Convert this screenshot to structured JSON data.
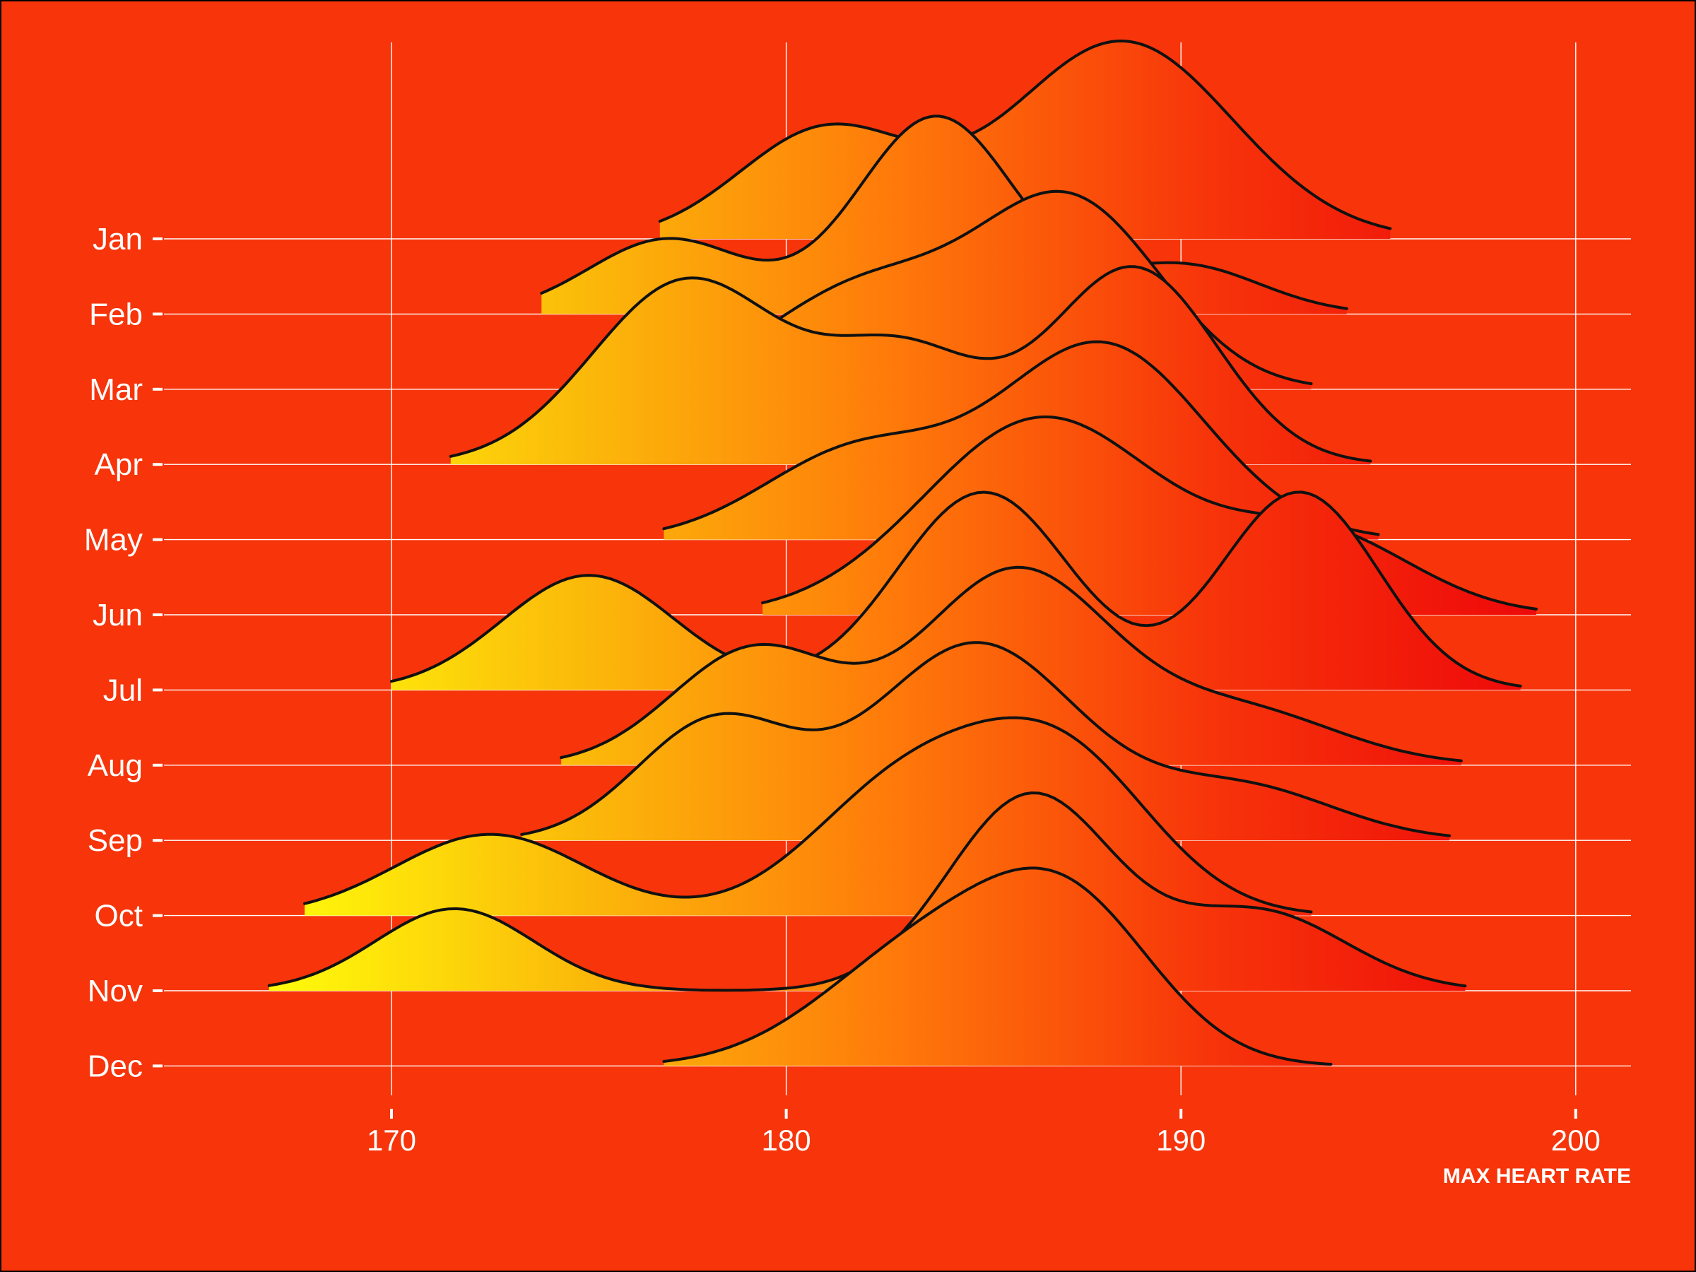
{
  "chart_data": {
    "type": "ridgeline",
    "title": "",
    "xlabel": "MAX HEART RATE",
    "ylabel": "",
    "xlim": [
      164.2,
      201.4
    ],
    "xticks": [
      170,
      180,
      190,
      200
    ],
    "categories": [
      "Jan",
      "Feb",
      "Mar",
      "Apr",
      "May",
      "Jun",
      "Jul",
      "Aug",
      "Sep",
      "Oct",
      "Nov",
      "Dec"
    ],
    "gradient_colors": [
      "#ffff0a",
      "#fbbb0a",
      "#ff7a0a",
      "#f7340a",
      "#ee0a0a"
    ],
    "series": [
      {
        "name": "Jan",
        "range": [
          176.8,
          195.3
        ],
        "components": [
          [
            181.0,
            2.2,
            0.55
          ],
          [
            188.5,
            2.8,
            1.0
          ]
        ]
      },
      {
        "name": "Feb",
        "range": [
          173.8,
          194.2
        ],
        "components": [
          [
            177.0,
            2.0,
            0.38
          ],
          [
            183.8,
            2.0,
            1.0
          ],
          [
            190.0,
            2.0,
            0.25
          ]
        ]
      },
      {
        "name": "Mar",
        "range": [
          179.0,
          193.3
        ],
        "components": [
          [
            182.0,
            2.5,
            0.55
          ],
          [
            187.2,
            2.3,
            1.0
          ]
        ]
      },
      {
        "name": "Apr",
        "range": [
          171.5,
          194.8
        ],
        "components": [
          [
            177.5,
            2.4,
            0.89
          ],
          [
            183.0,
            2.0,
            0.53
          ],
          [
            188.8,
            2.1,
            0.95
          ]
        ]
      },
      {
        "name": "May",
        "range": [
          176.9,
          195.0
        ],
        "components": [
          [
            181.8,
            2.4,
            0.45
          ],
          [
            188.0,
            2.6,
            1.0
          ]
        ]
      },
      {
        "name": "Jun",
        "range": [
          179.4,
          199.0
        ],
        "components": [
          [
            186.5,
            3.0,
            1.0
          ],
          [
            193.5,
            2.4,
            0.4
          ]
        ]
      },
      {
        "name": "Jul",
        "range": [
          170.0,
          198.6
        ],
        "components": [
          [
            175.0,
            2.2,
            0.58
          ],
          [
            185.0,
            2.2,
            1.0
          ],
          [
            193.0,
            2.0,
            1.0
          ]
        ]
      },
      {
        "name": "Aug",
        "range": [
          174.3,
          197.1
        ],
        "components": [
          [
            179.2,
            2.1,
            0.6
          ],
          [
            185.8,
            2.4,
            1.0
          ],
          [
            191.5,
            2.5,
            0.28
          ]
        ]
      },
      {
        "name": "Sep",
        "range": [
          173.3,
          196.8
        ],
        "components": [
          [
            178.2,
            2.0,
            0.6
          ],
          [
            184.8,
            2.6,
            1.0
          ],
          [
            191.5,
            2.4,
            0.27
          ]
        ]
      },
      {
        "name": "Oct",
        "range": [
          167.8,
          193.3
        ],
        "components": [
          [
            172.5,
            2.4,
            0.45
          ],
          [
            183.0,
            2.4,
            0.7
          ],
          [
            187.0,
            2.3,
            0.85
          ]
        ]
      },
      {
        "name": "Nov",
        "range": [
          166.9,
          197.2
        ],
        "components": [
          [
            171.6,
            2.0,
            0.42
          ],
          [
            186.2,
            2.1,
            1.0
          ],
          [
            192.0,
            2.2,
            0.4
          ]
        ]
      },
      {
        "name": "Dec",
        "range": [
          176.9,
          193.8
        ],
        "components": [
          [
            183.5,
            2.6,
            0.6
          ],
          [
            187.2,
            2.2,
            0.77
          ]
        ]
      }
    ]
  }
}
